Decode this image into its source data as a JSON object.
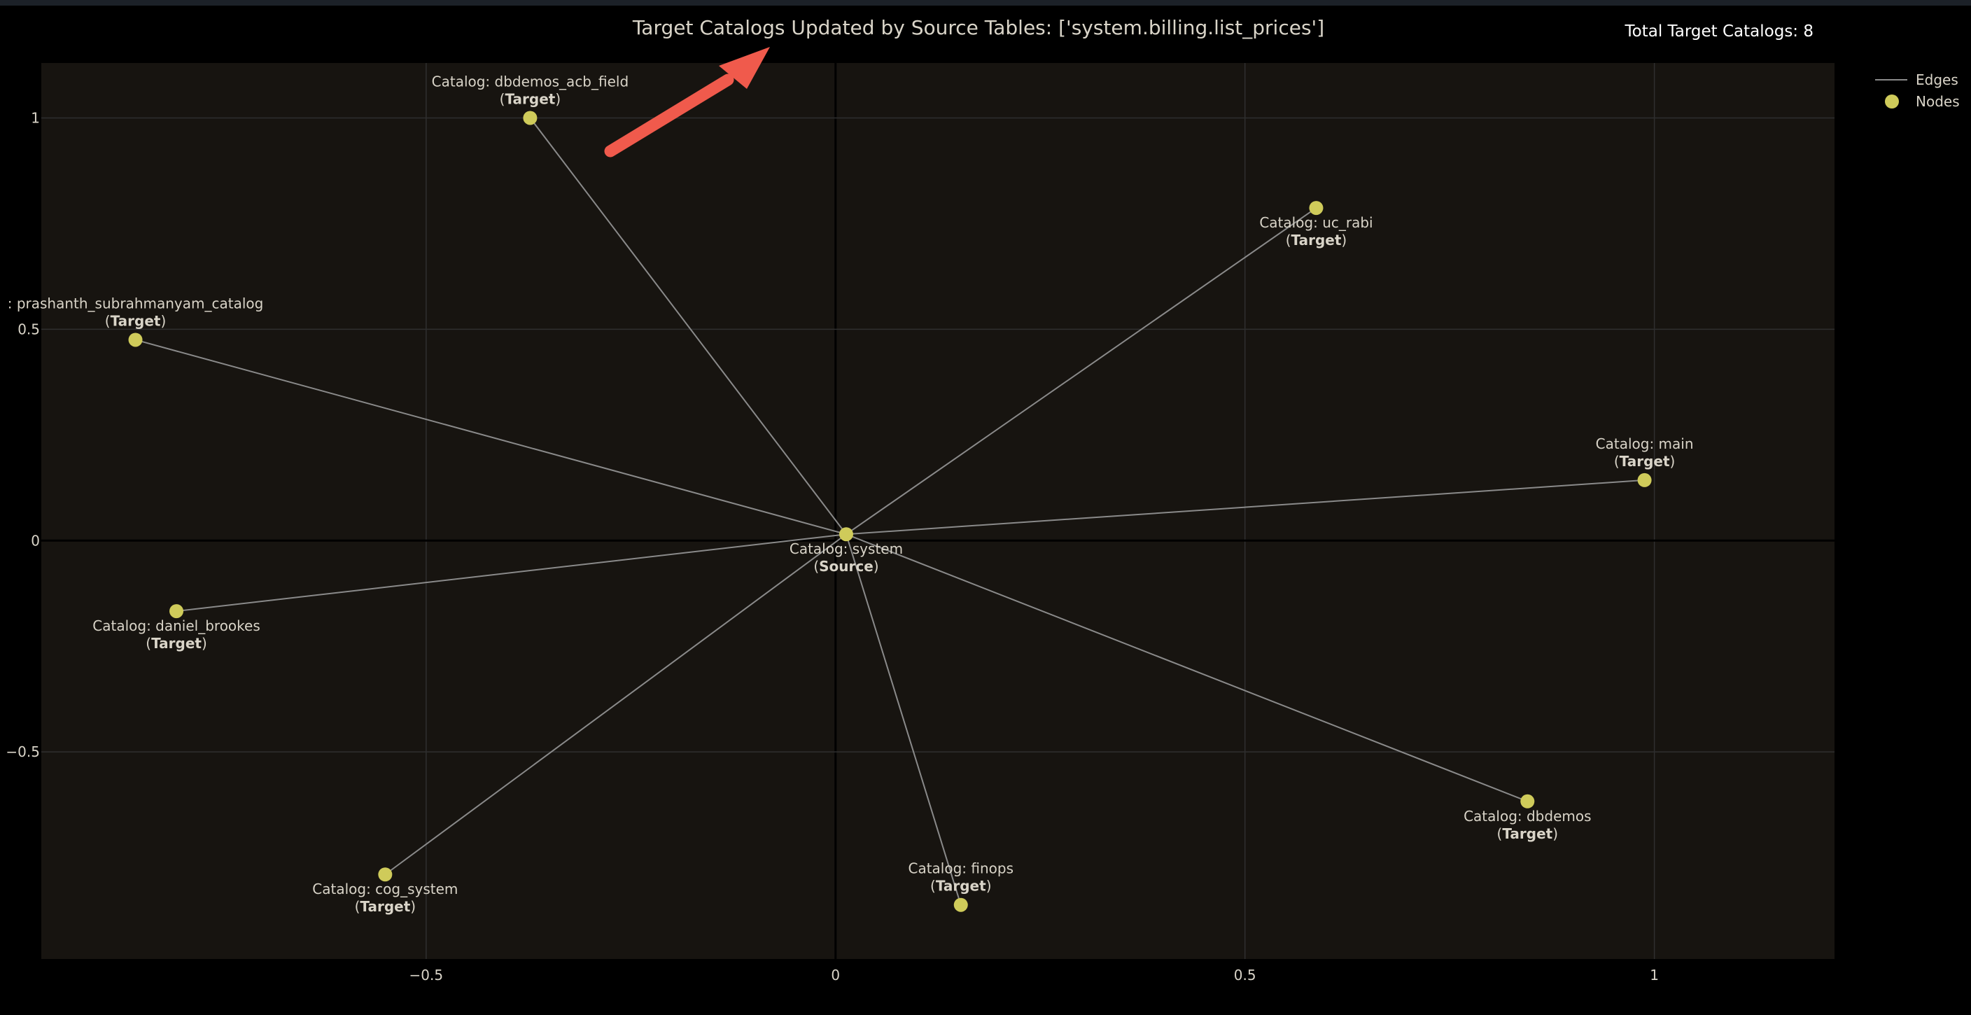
{
  "chart_data": {
    "type": "scatter",
    "title": "Target Catalogs Updated by Source Tables: ['system.billing.list_prices']",
    "annotation": "Total Target Catalogs: 8",
    "xlabel": "",
    "ylabel": "",
    "xlim": [
      -0.97,
      1.22
    ],
    "ylim": [
      -0.99,
      1.13
    ],
    "x_ticks": [
      -0.5,
      0,
      0.5,
      1
    ],
    "x_tick_labels": [
      "−0.5",
      "0",
      "0.5",
      "1"
    ],
    "y_ticks": [
      -0.5,
      0,
      0.5,
      1
    ],
    "y_tick_labels": [
      "−0.5",
      "0",
      "0.5",
      "1"
    ],
    "grid": true,
    "legend": {
      "position": "top-right",
      "entries": [
        "Edges",
        "Nodes"
      ]
    },
    "colors": {
      "plot_bg": "#171410",
      "page_bg": "#000000",
      "node": "#cfcb5a",
      "edge": "#8a8a8a",
      "grid": "#2f2f2f",
      "zero_line": "#000000",
      "text": "#d9d4c8",
      "arrow": "#f05a4c"
    },
    "source": {
      "name": "system",
      "label": "Catalog: system",
      "role": "Source",
      "x": 0.013,
      "y": 0.015
    },
    "targets": [
      {
        "name": "dbdemos_acb_field",
        "label": "Catalog: dbdemos_acb_field",
        "role": "Target",
        "x": -0.373,
        "y": 1.0,
        "label_pos": "top"
      },
      {
        "name": "uc_rabi",
        "label": "Catalog: uc_rabi",
        "role": "Target",
        "x": 0.587,
        "y": 0.787,
        "label_pos": "bottom"
      },
      {
        "name": "prashanth_subrahmanyam_catalog",
        "label": ": prashanth_subrahmanyam_catalog",
        "role": "Target",
        "x": -0.855,
        "y": 0.475,
        "label_pos": "top"
      },
      {
        "name": "main",
        "label": "Catalog: main",
        "role": "Target",
        "x": 0.988,
        "y": 0.143,
        "label_pos": "top"
      },
      {
        "name": "daniel_brookes",
        "label": "Catalog: daniel_brookes",
        "role": "Target",
        "x": -0.805,
        "y": -0.167,
        "label_pos": "bottom"
      },
      {
        "name": "cog_system",
        "label": "Catalog: cog_system",
        "role": "Target",
        "x": -0.55,
        "y": -0.79,
        "label_pos": "bottom"
      },
      {
        "name": "finops",
        "label": "Catalog: finops",
        "role": "Target",
        "x": 0.153,
        "y": -0.862,
        "label_pos": "top"
      },
      {
        "name": "dbdemos",
        "label": "Catalog: dbdemos",
        "role": "Target",
        "x": 0.845,
        "y": -0.617,
        "label_pos": "bottom"
      }
    ]
  }
}
